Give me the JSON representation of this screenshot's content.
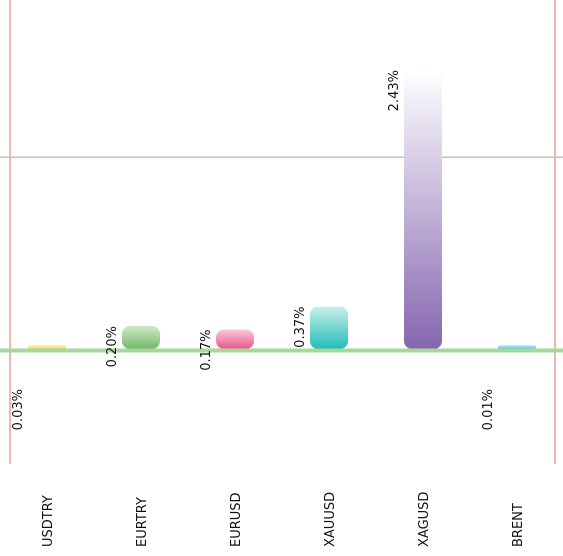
{
  "chart_data": {
    "type": "bar",
    "categories": [
      "USDTRY",
      "EURTRY",
      "EURUSD",
      "XAUUSD",
      "XAGUSD",
      "BRENT"
    ],
    "values": [
      0.03,
      0.2,
      0.17,
      0.37,
      2.43,
      0.01
    ],
    "value_labels": [
      "0.03%",
      "0.20%",
      "0.17%",
      "0.37%",
      "2.43%",
      "0.01%"
    ],
    "ylim": [
      0,
      2.43
    ],
    "reference_line": 1.67,
    "grid": false,
    "legend": "none",
    "colors": {
      "USDTRY": [
        "#fff6a8",
        "#ecd860"
      ],
      "EURTRY": [
        "#cfe9c8",
        "#74b869"
      ],
      "EURUSD": [
        "#fbc8da",
        "#e9568c"
      ],
      "XAUUSD": [
        "#c9f0ec",
        "#22bcb6"
      ],
      "XAGUSD": [
        "#ffffff",
        "#8666b0"
      ],
      "BRENT": [
        "#cdf0fb",
        "#4cc4e8"
      ],
      "axis_lines": "#e8a090",
      "baseline": "#a6d79c"
    }
  }
}
